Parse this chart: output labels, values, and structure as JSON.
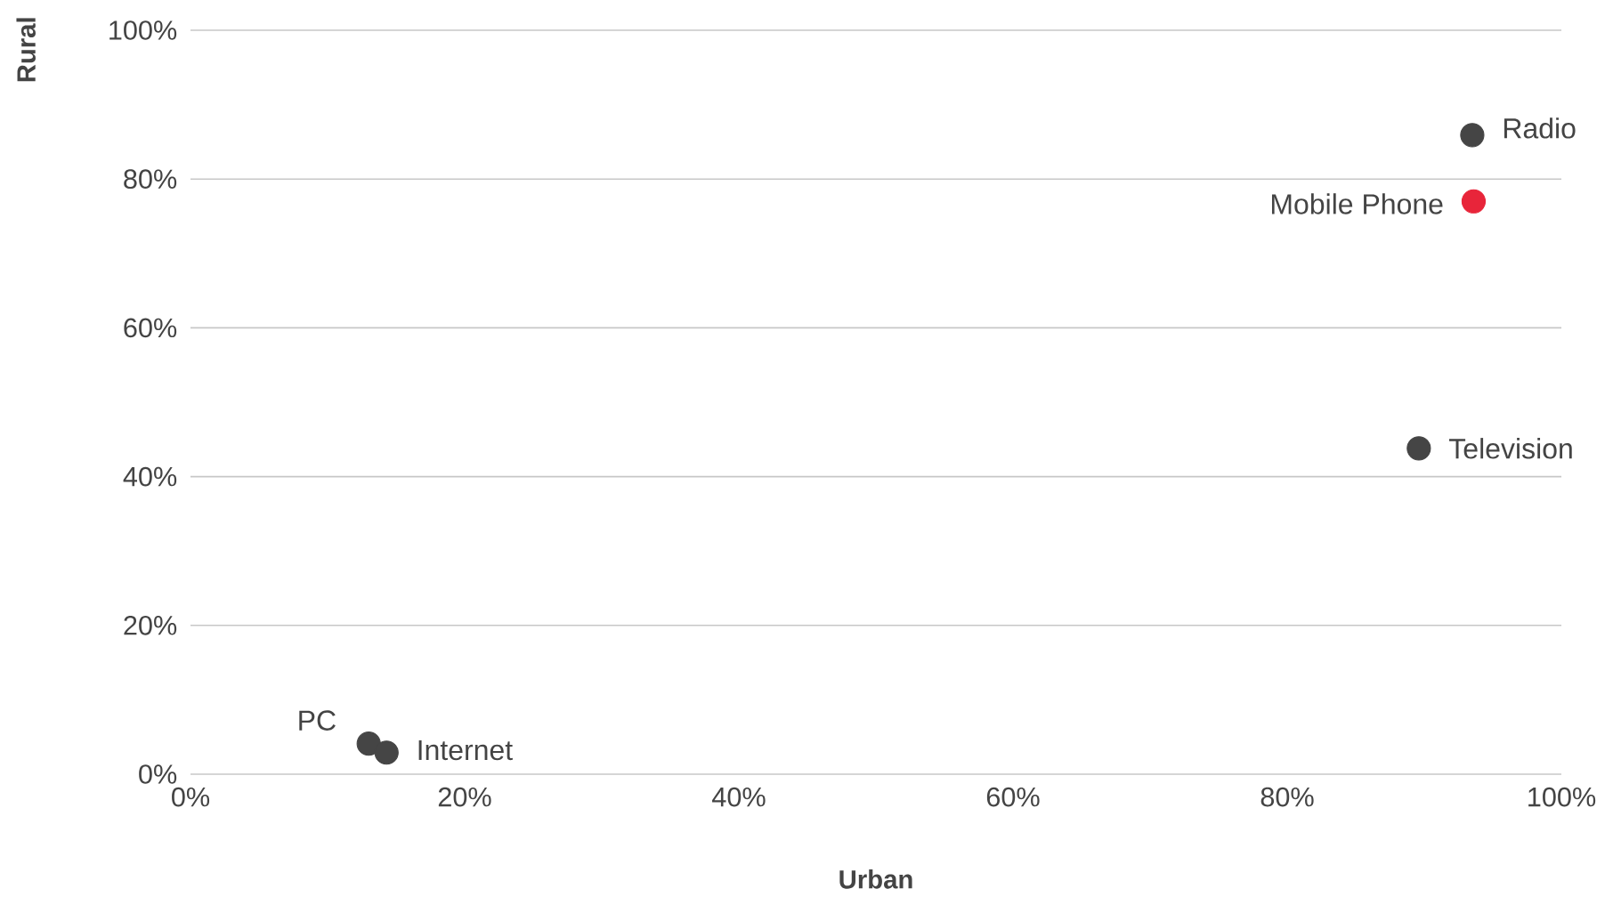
{
  "chart_data": {
    "type": "scatter",
    "xlabel": "Urban",
    "ylabel": "Rural",
    "x": [
      93.5,
      93.6,
      89.6,
      13.0,
      14.3
    ],
    "values": [
      85.9,
      77.0,
      43.8,
      4.1,
      2.9
    ],
    "colors": [
      "#454545",
      "#e8253a",
      "#454545",
      "#454545",
      "#454545"
    ],
    "xlim": [
      0,
      100
    ],
    "ylim": [
      0,
      100
    ],
    "xticks": [
      {
        "value": 0,
        "label": "0%"
      },
      {
        "value": 20,
        "label": "20%"
      },
      {
        "value": 40,
        "label": "40%"
      },
      {
        "value": 60,
        "label": "60%"
      },
      {
        "value": 80,
        "label": "80%"
      },
      {
        "value": 100,
        "label": "100%"
      }
    ],
    "yticks": [
      {
        "value": 0,
        "label": "0%"
      },
      {
        "value": 20,
        "label": "20%"
      },
      {
        "value": 40,
        "label": "40%"
      },
      {
        "value": 60,
        "label": "60%"
      },
      {
        "value": 80,
        "label": "80%"
      },
      {
        "value": 100,
        "label": "100%"
      }
    ],
    "grid": "y",
    "marker": "circle",
    "annotations": [
      {
        "text": "Radio",
        "x": 93.5,
        "y": 85.9
      },
      {
        "text": "Mobile Phone",
        "x": 93.6,
        "y": 77.0
      },
      {
        "text": "Television",
        "x": 89.6,
        "y": 43.8
      },
      {
        "text": "PC",
        "x": 13.0,
        "y": 4.1
      },
      {
        "text": "Internet",
        "x": 14.3,
        "y": 2.9
      }
    ]
  }
}
